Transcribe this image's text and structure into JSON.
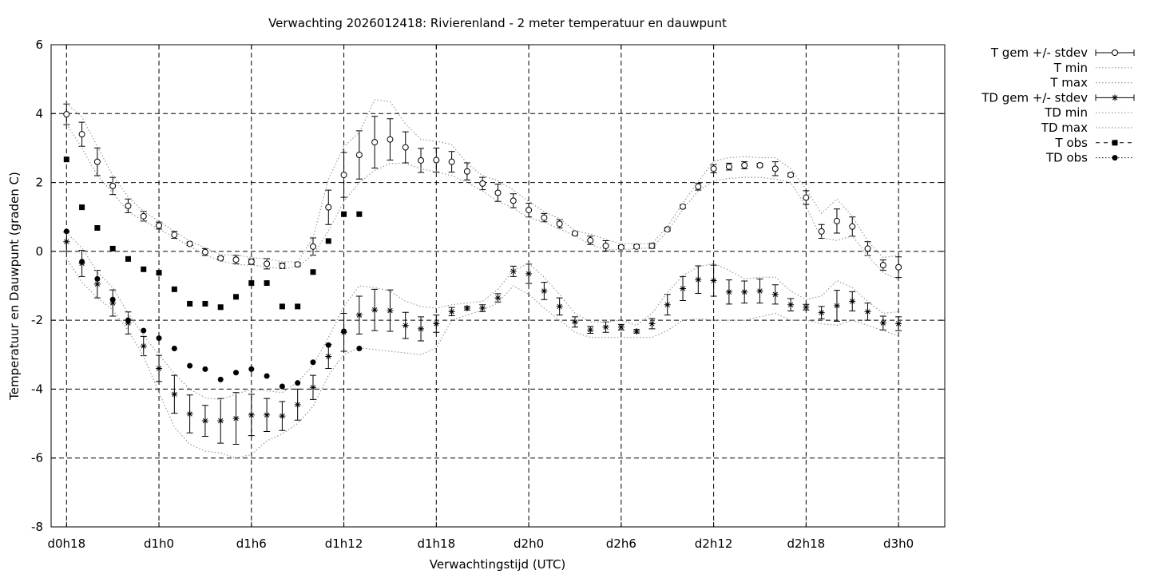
{
  "chart_data": {
    "type": "scatter",
    "title": "Verwachting 2026012418: Rivierenland - 2 meter temperatuur en dauwpunt",
    "xlabel": "Verwachtingstijd (UTC)",
    "ylabel": "Temperatuur en Dauwpunt (graden C)",
    "xlim": [
      -1,
      57
    ],
    "ylim": [
      -8,
      6
    ],
    "grid": true,
    "legend_position": "right-outside",
    "x_ticks": [
      {
        "x": 0,
        "label": "d0h18"
      },
      {
        "x": 6,
        "label": "d1h0"
      },
      {
        "x": 12,
        "label": "d1h6"
      },
      {
        "x": 18,
        "label": "d1h12"
      },
      {
        "x": 24,
        "label": "d1h18"
      },
      {
        "x": 30,
        "label": "d2h0"
      },
      {
        "x": 36,
        "label": "d2h6"
      },
      {
        "x": 42,
        "label": "d2h12"
      },
      {
        "x": 48,
        "label": "d2h18"
      },
      {
        "x": 54,
        "label": "d3h0"
      }
    ],
    "y_ticks": [
      -8,
      -6,
      -4,
      -2,
      0,
      2,
      4,
      6
    ],
    "series": [
      {
        "name": "T gem +/- stdev",
        "style": "errorbars-open-circle",
        "x": [
          0,
          1,
          2,
          3,
          4,
          5,
          6,
          7,
          8,
          9,
          10,
          11,
          12,
          13,
          14,
          15,
          16,
          17,
          18,
          19,
          20,
          21,
          22,
          23,
          24,
          25,
          26,
          27,
          28,
          29,
          30,
          31,
          32,
          33,
          34,
          35,
          36,
          37,
          38,
          39,
          40,
          41,
          42,
          43,
          44,
          45,
          46,
          47,
          48,
          49,
          50,
          51,
          52,
          53,
          54
        ],
        "values": [
          3.98,
          3.4,
          2.6,
          1.9,
          1.32,
          1.02,
          0.75,
          0.48,
          0.22,
          -0.02,
          -0.2,
          -0.24,
          -0.3,
          -0.36,
          -0.42,
          -0.38,
          0.14,
          1.28,
          2.22,
          2.8,
          3.17,
          3.25,
          3.02,
          2.64,
          2.65,
          2.6,
          2.32,
          1.97,
          1.7,
          1.47,
          1.2,
          0.98,
          0.8,
          0.52,
          0.32,
          0.16,
          0.12,
          0.14,
          0.16,
          0.64,
          1.3,
          1.88,
          2.4,
          2.46,
          2.5,
          2.5,
          2.4,
          2.22,
          1.56,
          0.58,
          0.88,
          0.72,
          0.08,
          -0.4,
          -0.46
        ],
        "stdev": [
          0.3,
          0.35,
          0.4,
          0.25,
          0.2,
          0.14,
          0.1,
          0.1,
          0.05,
          0.1,
          0.05,
          0.12,
          0.08,
          0.15,
          0.08,
          0.05,
          0.25,
          0.5,
          0.65,
          0.7,
          0.75,
          0.6,
          0.45,
          0.35,
          0.35,
          0.3,
          0.25,
          0.18,
          0.25,
          0.2,
          0.2,
          0.12,
          0.12,
          0.05,
          0.12,
          0.15,
          0.05,
          0.06,
          0.07,
          0.05,
          0.05,
          0.1,
          0.12,
          0.1,
          0.1,
          0.05,
          0.2,
          0.05,
          0.2,
          0.2,
          0.35,
          0.28,
          0.2,
          0.15,
          0.3
        ]
      },
      {
        "name": "T min",
        "style": "dotted-line",
        "x": [
          0,
          1,
          2,
          3,
          4,
          5,
          6,
          7,
          8,
          9,
          10,
          11,
          12,
          13,
          14,
          15,
          16,
          17,
          18,
          19,
          20,
          21,
          22,
          23,
          24,
          25,
          26,
          27,
          28,
          29,
          30,
          31,
          32,
          33,
          34,
          35,
          36,
          37,
          38,
          39,
          40,
          41,
          42,
          43,
          44,
          45,
          46,
          47,
          48,
          49,
          50,
          51,
          52,
          53,
          54
        ],
        "values": [
          3.7,
          3.0,
          2.2,
          1.7,
          1.15,
          0.88,
          0.65,
          0.4,
          0.15,
          -0.1,
          -0.28,
          -0.38,
          -0.4,
          -0.45,
          -0.5,
          -0.45,
          -0.1,
          0.6,
          1.45,
          2.0,
          2.35,
          2.55,
          2.55,
          2.4,
          2.3,
          2.2,
          2.0,
          1.75,
          1.45,
          1.25,
          0.98,
          0.85,
          0.65,
          0.45,
          0.2,
          0.05,
          0.05,
          0.08,
          0.1,
          0.58,
          1.22,
          1.75,
          2.05,
          2.12,
          2.15,
          2.15,
          2.1,
          2.0,
          1.3,
          0.38,
          0.32,
          0.45,
          -0.12,
          -0.62,
          -0.82
        ]
      },
      {
        "name": "T max",
        "style": "dotted-line",
        "x": [
          0,
          1,
          2,
          3,
          4,
          5,
          6,
          7,
          8,
          9,
          10,
          11,
          12,
          13,
          14,
          15,
          16,
          17,
          18,
          19,
          20,
          21,
          22,
          23,
          24,
          25,
          26,
          27,
          28,
          29,
          30,
          31,
          32,
          33,
          34,
          35,
          36,
          37,
          38,
          39,
          40,
          41,
          42,
          43,
          44,
          45,
          46,
          47,
          48,
          49,
          50,
          51,
          52,
          53,
          54
        ],
        "values": [
          4.3,
          3.9,
          3.05,
          2.2,
          1.58,
          1.15,
          0.88,
          0.58,
          0.3,
          0.1,
          -0.1,
          -0.1,
          -0.18,
          -0.22,
          -0.3,
          -0.3,
          0.4,
          2.1,
          3.05,
          3.45,
          4.4,
          4.35,
          3.7,
          3.25,
          3.2,
          3.1,
          2.55,
          2.2,
          2.05,
          1.78,
          1.45,
          1.15,
          0.95,
          0.6,
          0.5,
          0.35,
          0.22,
          0.22,
          0.22,
          0.72,
          1.4,
          2.02,
          2.62,
          2.72,
          2.75,
          2.72,
          2.72,
          2.4,
          1.8,
          1.1,
          1.52,
          1.02,
          0.3,
          -0.18,
          -0.12
        ]
      },
      {
        "name": "TD gem +/- stdev",
        "style": "errorbars-asterisk",
        "x": [
          0,
          1,
          2,
          3,
          4,
          5,
          6,
          7,
          8,
          9,
          10,
          11,
          12,
          13,
          14,
          15,
          16,
          17,
          18,
          19,
          20,
          21,
          22,
          23,
          24,
          25,
          26,
          27,
          28,
          29,
          30,
          31,
          32,
          33,
          34,
          35,
          36,
          37,
          38,
          39,
          40,
          41,
          42,
          43,
          44,
          45,
          46,
          47,
          48,
          49,
          50,
          51,
          52,
          53,
          54
        ],
        "values": [
          0.28,
          -0.35,
          -0.95,
          -1.5,
          -2.08,
          -2.75,
          -3.4,
          -4.15,
          -4.72,
          -4.92,
          -4.92,
          -4.85,
          -4.75,
          -4.75,
          -4.78,
          -4.45,
          -3.95,
          -3.05,
          -2.35,
          -1.85,
          -1.7,
          -1.72,
          -2.15,
          -2.25,
          -2.1,
          -1.75,
          -1.65,
          -1.65,
          -1.35,
          -0.58,
          -0.65,
          -1.15,
          -1.6,
          -2.05,
          -2.28,
          -2.2,
          -2.2,
          -2.32,
          -2.1,
          -1.55,
          -1.08,
          -0.82,
          -0.85,
          -1.18,
          -1.18,
          -1.15,
          -1.25,
          -1.55,
          -1.62,
          -1.78,
          -1.58,
          -1.45,
          -1.75,
          -2.08,
          -2.1
        ],
        "stdev": [
          0.28,
          0.38,
          0.4,
          0.38,
          0.32,
          0.28,
          0.38,
          0.55,
          0.55,
          0.45,
          0.65,
          0.75,
          0.6,
          0.48,
          0.42,
          0.45,
          0.35,
          0.35,
          0.55,
          0.55,
          0.6,
          0.6,
          0.38,
          0.35,
          0.25,
          0.12,
          0.05,
          0.1,
          0.12,
          0.15,
          0.28,
          0.25,
          0.25,
          0.15,
          0.1,
          0.15,
          0.08,
          0.05,
          0.15,
          0.3,
          0.35,
          0.4,
          0.45,
          0.35,
          0.32,
          0.35,
          0.28,
          0.18,
          0.08,
          0.18,
          0.45,
          0.28,
          0.25,
          0.2,
          0.2
        ]
      },
      {
        "name": "TD min",
        "style": "dotted-line",
        "x": [
          0,
          1,
          2,
          3,
          4,
          5,
          6,
          7,
          8,
          9,
          10,
          11,
          12,
          13,
          14,
          15,
          16,
          17,
          18,
          19,
          20,
          21,
          22,
          23,
          24,
          25,
          26,
          27,
          28,
          29,
          30,
          31,
          32,
          33,
          34,
          35,
          36,
          37,
          38,
          39,
          40,
          41,
          42,
          43,
          44,
          45,
          46,
          47,
          48,
          49,
          50,
          51,
          52,
          53,
          54
        ],
        "values": [
          -0.2,
          -0.9,
          -1.35,
          -1.7,
          -2.3,
          -3.05,
          -4.1,
          -5.1,
          -5.6,
          -5.8,
          -5.85,
          -6.0,
          -5.9,
          -5.5,
          -5.3,
          -5.0,
          -4.5,
          -3.6,
          -3.0,
          -2.8,
          -2.85,
          -2.9,
          -2.95,
          -3.0,
          -2.8,
          -2.0,
          -1.85,
          -1.7,
          -1.5,
          -1.0,
          -1.25,
          -1.65,
          -2.0,
          -2.35,
          -2.5,
          -2.5,
          -2.5,
          -2.5,
          -2.5,
          -2.3,
          -2.0,
          -1.95,
          -2.0,
          -2.0,
          -2.0,
          -1.9,
          -1.8,
          -2.0,
          -2.0,
          -2.1,
          -2.15,
          -2.0,
          -2.15,
          -2.3,
          -2.45
        ]
      },
      {
        "name": "TD max",
        "style": "dotted-line",
        "x": [
          0,
          1,
          2,
          3,
          4,
          5,
          6,
          7,
          8,
          9,
          10,
          11,
          12,
          13,
          14,
          15,
          16,
          17,
          18,
          19,
          20,
          21,
          22,
          23,
          24,
          25,
          26,
          27,
          28,
          29,
          30,
          31,
          32,
          33,
          34,
          35,
          36,
          37,
          38,
          39,
          40,
          41,
          42,
          43,
          44,
          45,
          46,
          47,
          48,
          49,
          50,
          51,
          52,
          53,
          54
        ],
        "values": [
          0.55,
          0.1,
          -0.6,
          -1.05,
          -1.8,
          -2.45,
          -3.0,
          -3.55,
          -4.0,
          -4.25,
          -4.3,
          -4.15,
          -4.0,
          -4.05,
          -4.1,
          -3.8,
          -3.3,
          -2.5,
          -1.6,
          -1.0,
          -1.05,
          -1.15,
          -1.45,
          -1.6,
          -1.65,
          -1.55,
          -1.5,
          -1.45,
          -1.1,
          -0.55,
          -0.35,
          -0.75,
          -1.25,
          -1.8,
          -2.05,
          -2.05,
          -2.0,
          -2.15,
          -1.8,
          -1.2,
          -0.7,
          -0.45,
          -0.35,
          -0.55,
          -0.8,
          -0.75,
          -0.75,
          -1.15,
          -1.4,
          -1.3,
          -0.85,
          -1.05,
          -1.45,
          -1.8,
          -1.75
        ]
      },
      {
        "name": "T obs",
        "style": "filled-square",
        "x": [
          0,
          1,
          2,
          3,
          4,
          5,
          6,
          7,
          8,
          9,
          10,
          11,
          12,
          13,
          14,
          15,
          16,
          17,
          18,
          19
        ],
        "values": [
          2.67,
          1.28,
          0.68,
          0.08,
          -0.22,
          -0.52,
          -0.62,
          -1.1,
          -1.52,
          -1.52,
          -1.62,
          -1.32,
          -0.92,
          -0.92,
          -1.6,
          -1.6,
          -0.6,
          0.3,
          1.08,
          1.08
        ]
      },
      {
        "name": "TD obs",
        "style": "filled-circle",
        "x": [
          0,
          1,
          2,
          3,
          4,
          5,
          6,
          7,
          8,
          9,
          10,
          11,
          12,
          13,
          14,
          15,
          16,
          17,
          18,
          19
        ],
        "values": [
          0.58,
          -0.3,
          -0.8,
          -1.4,
          -2.0,
          -2.3,
          -2.52,
          -2.82,
          -3.32,
          -3.42,
          -3.72,
          -3.52,
          -3.42,
          -3.62,
          -3.92,
          -3.82,
          -3.22,
          -2.72,
          -2.32,
          -2.82
        ]
      }
    ]
  }
}
